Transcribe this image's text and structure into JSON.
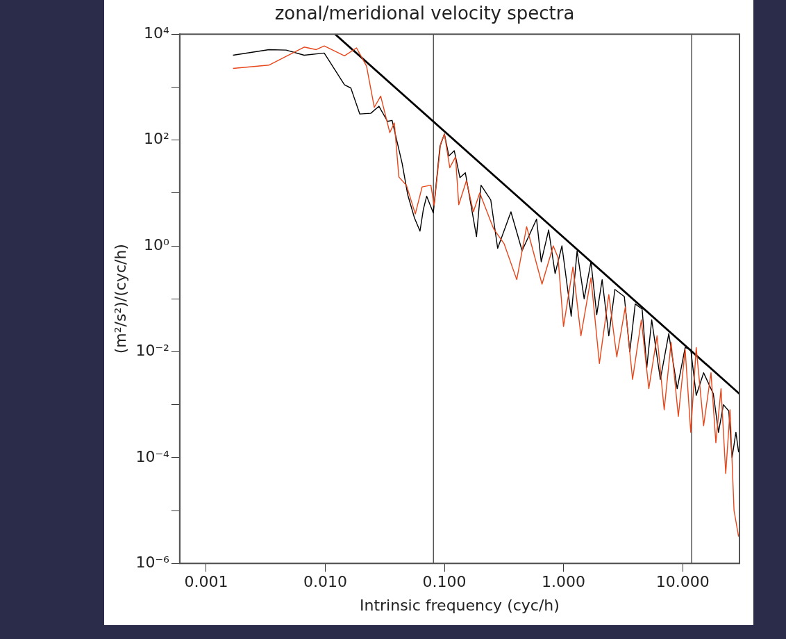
{
  "chart_data": {
    "type": "line",
    "title": "zonal/meridional velocity spectra",
    "xlabel": "Intrinsic frequency (cyc/h)",
    "ylabel": "(m²/s²)/(cyc/h)",
    "log": "xy",
    "grid": false,
    "legend": false,
    "marker": "none",
    "line_style": "solid",
    "xlim": [
      0.0006,
      30
    ],
    "ylim": [
      1e-06,
      10000
    ],
    "xticks": [
      0.001,
      {
        "value": 0.01,
        "label": "0.010"
      },
      {
        "value": 0.1,
        "label": "0.100"
      },
      {
        "value": 1,
        "label": "1.000"
      },
      {
        "value": 10,
        "label": "10.000"
      }
    ],
    "yticks": [
      {
        "value": 1e-06,
        "label": "10⁻⁶"
      },
      {
        "value": 1e-05,
        "label": null
      },
      {
        "value": 0.0001,
        "label": "10⁻⁴"
      },
      {
        "value": 0.001,
        "label": null
      },
      {
        "value": 0.01,
        "label": "10⁻²"
      },
      {
        "value": 0.1,
        "label": null
      },
      {
        "value": 1,
        "label": "10⁰"
      },
      {
        "value": 10,
        "label": null
      },
      {
        "value": 100,
        "label": "10²"
      },
      {
        "value": 1000,
        "label": null
      },
      {
        "value": 10000,
        "label": "10⁴"
      }
    ],
    "series": [
      {
        "color": "#e8461a",
        "x": [
          0.00168,
          0.00336,
          0.00665,
          0.0084,
          0.0098,
          0.0145,
          0.0183,
          0.0222,
          0.0258,
          0.0292,
          0.0348,
          0.038,
          0.0415,
          0.048,
          0.057,
          0.065,
          0.077,
          0.082,
          0.093,
          0.1,
          0.111,
          0.124,
          0.132,
          0.153,
          0.175,
          0.198,
          0.259,
          0.317,
          0.405,
          0.49,
          0.66,
          0.82,
          0.9,
          1.0,
          1.2,
          1.4,
          1.7,
          2.0,
          2.4,
          2.8,
          3.3,
          3.8,
          4.5,
          5.2,
          6.1,
          7.0,
          8.0,
          9.2,
          10.5,
          11.7,
          13,
          15,
          17.3,
          19,
          21,
          23,
          25,
          27,
          29.5
        ],
        "values": [
          2250,
          2600,
          5700,
          5100,
          6000,
          3900,
          5500,
          2500,
          415,
          675,
          138,
          210,
          20,
          14,
          4,
          13,
          14,
          5.8,
          85,
          130,
          30,
          48,
          6,
          17,
          4.4,
          10,
          2.1,
          1.1,
          0.23,
          2.3,
          0.19,
          1,
          0.6,
          0.03,
          0.4,
          0.02,
          0.25,
          0.006,
          0.12,
          0.008,
          0.07,
          0.003,
          0.04,
          0.002,
          0.02,
          0.0008,
          0.015,
          0.0006,
          0.011,
          0.0003,
          0.012,
          0.0004,
          0.004,
          0.00019,
          0.002,
          5e-05,
          0.0008,
          1e-05,
          3.2e-06
        ]
      },
      {
        "color": "#000000",
        "x": [
          0.00168,
          0.00336,
          0.0047,
          0.00665,
          0.0098,
          0.0145,
          0.0164,
          0.0195,
          0.0241,
          0.0282,
          0.0333,
          0.0364,
          0.0442,
          0.0492,
          0.056,
          0.0624,
          0.0666,
          0.071,
          0.0807,
          0.0918,
          0.1,
          0.109,
          0.121,
          0.135,
          0.15,
          0.186,
          0.203,
          0.245,
          0.28,
          0.362,
          0.449,
          0.594,
          0.65,
          0.75,
          0.85,
          0.97,
          1.16,
          1.3,
          1.49,
          1.7,
          1.9,
          2.11,
          2.4,
          2.7,
          3.24,
          3.6,
          4.0,
          4.57,
          5.0,
          5.5,
          6.5,
          7.65,
          9,
          10.5,
          11.7,
          13,
          15,
          18.1,
          20,
          22,
          24.4,
          26,
          28,
          29.5
        ],
        "values": [
          4000,
          5100,
          5000,
          4000,
          4400,
          1100,
          960,
          310,
          320,
          435,
          225,
          235,
          36,
          9.3,
          3.4,
          1.9,
          4.9,
          8.7,
          4.2,
          76,
          130,
          50,
          63,
          19.5,
          24,
          1.5,
          14,
          7.4,
          0.9,
          4.4,
          0.81,
          3.2,
          0.5,
          2,
          0.3,
          1,
          0.047,
          0.8,
          0.1,
          0.5,
          0.05,
          0.23,
          0.02,
          0.15,
          0.11,
          0.01,
          0.08,
          0.064,
          0.005,
          0.04,
          0.003,
          0.022,
          0.002,
          0.012,
          0.011,
          0.0015,
          0.004,
          0.0016,
          0.0003,
          0.001,
          0.00076,
          0.0001,
          0.0003,
          0.000126
        ]
      },
      {
        "type": "line",
        "color": "#000000",
        "x": [
          0.0121,
          30
        ],
        "values": [
          10000,
          0.0016
        ]
      }
    ],
    "ref_lines": [
      {
        "axis": "x",
        "value": 0.081,
        "color": "#555555"
      },
      {
        "axis": "x",
        "value": 11.9,
        "color": "#555555"
      }
    ]
  }
}
